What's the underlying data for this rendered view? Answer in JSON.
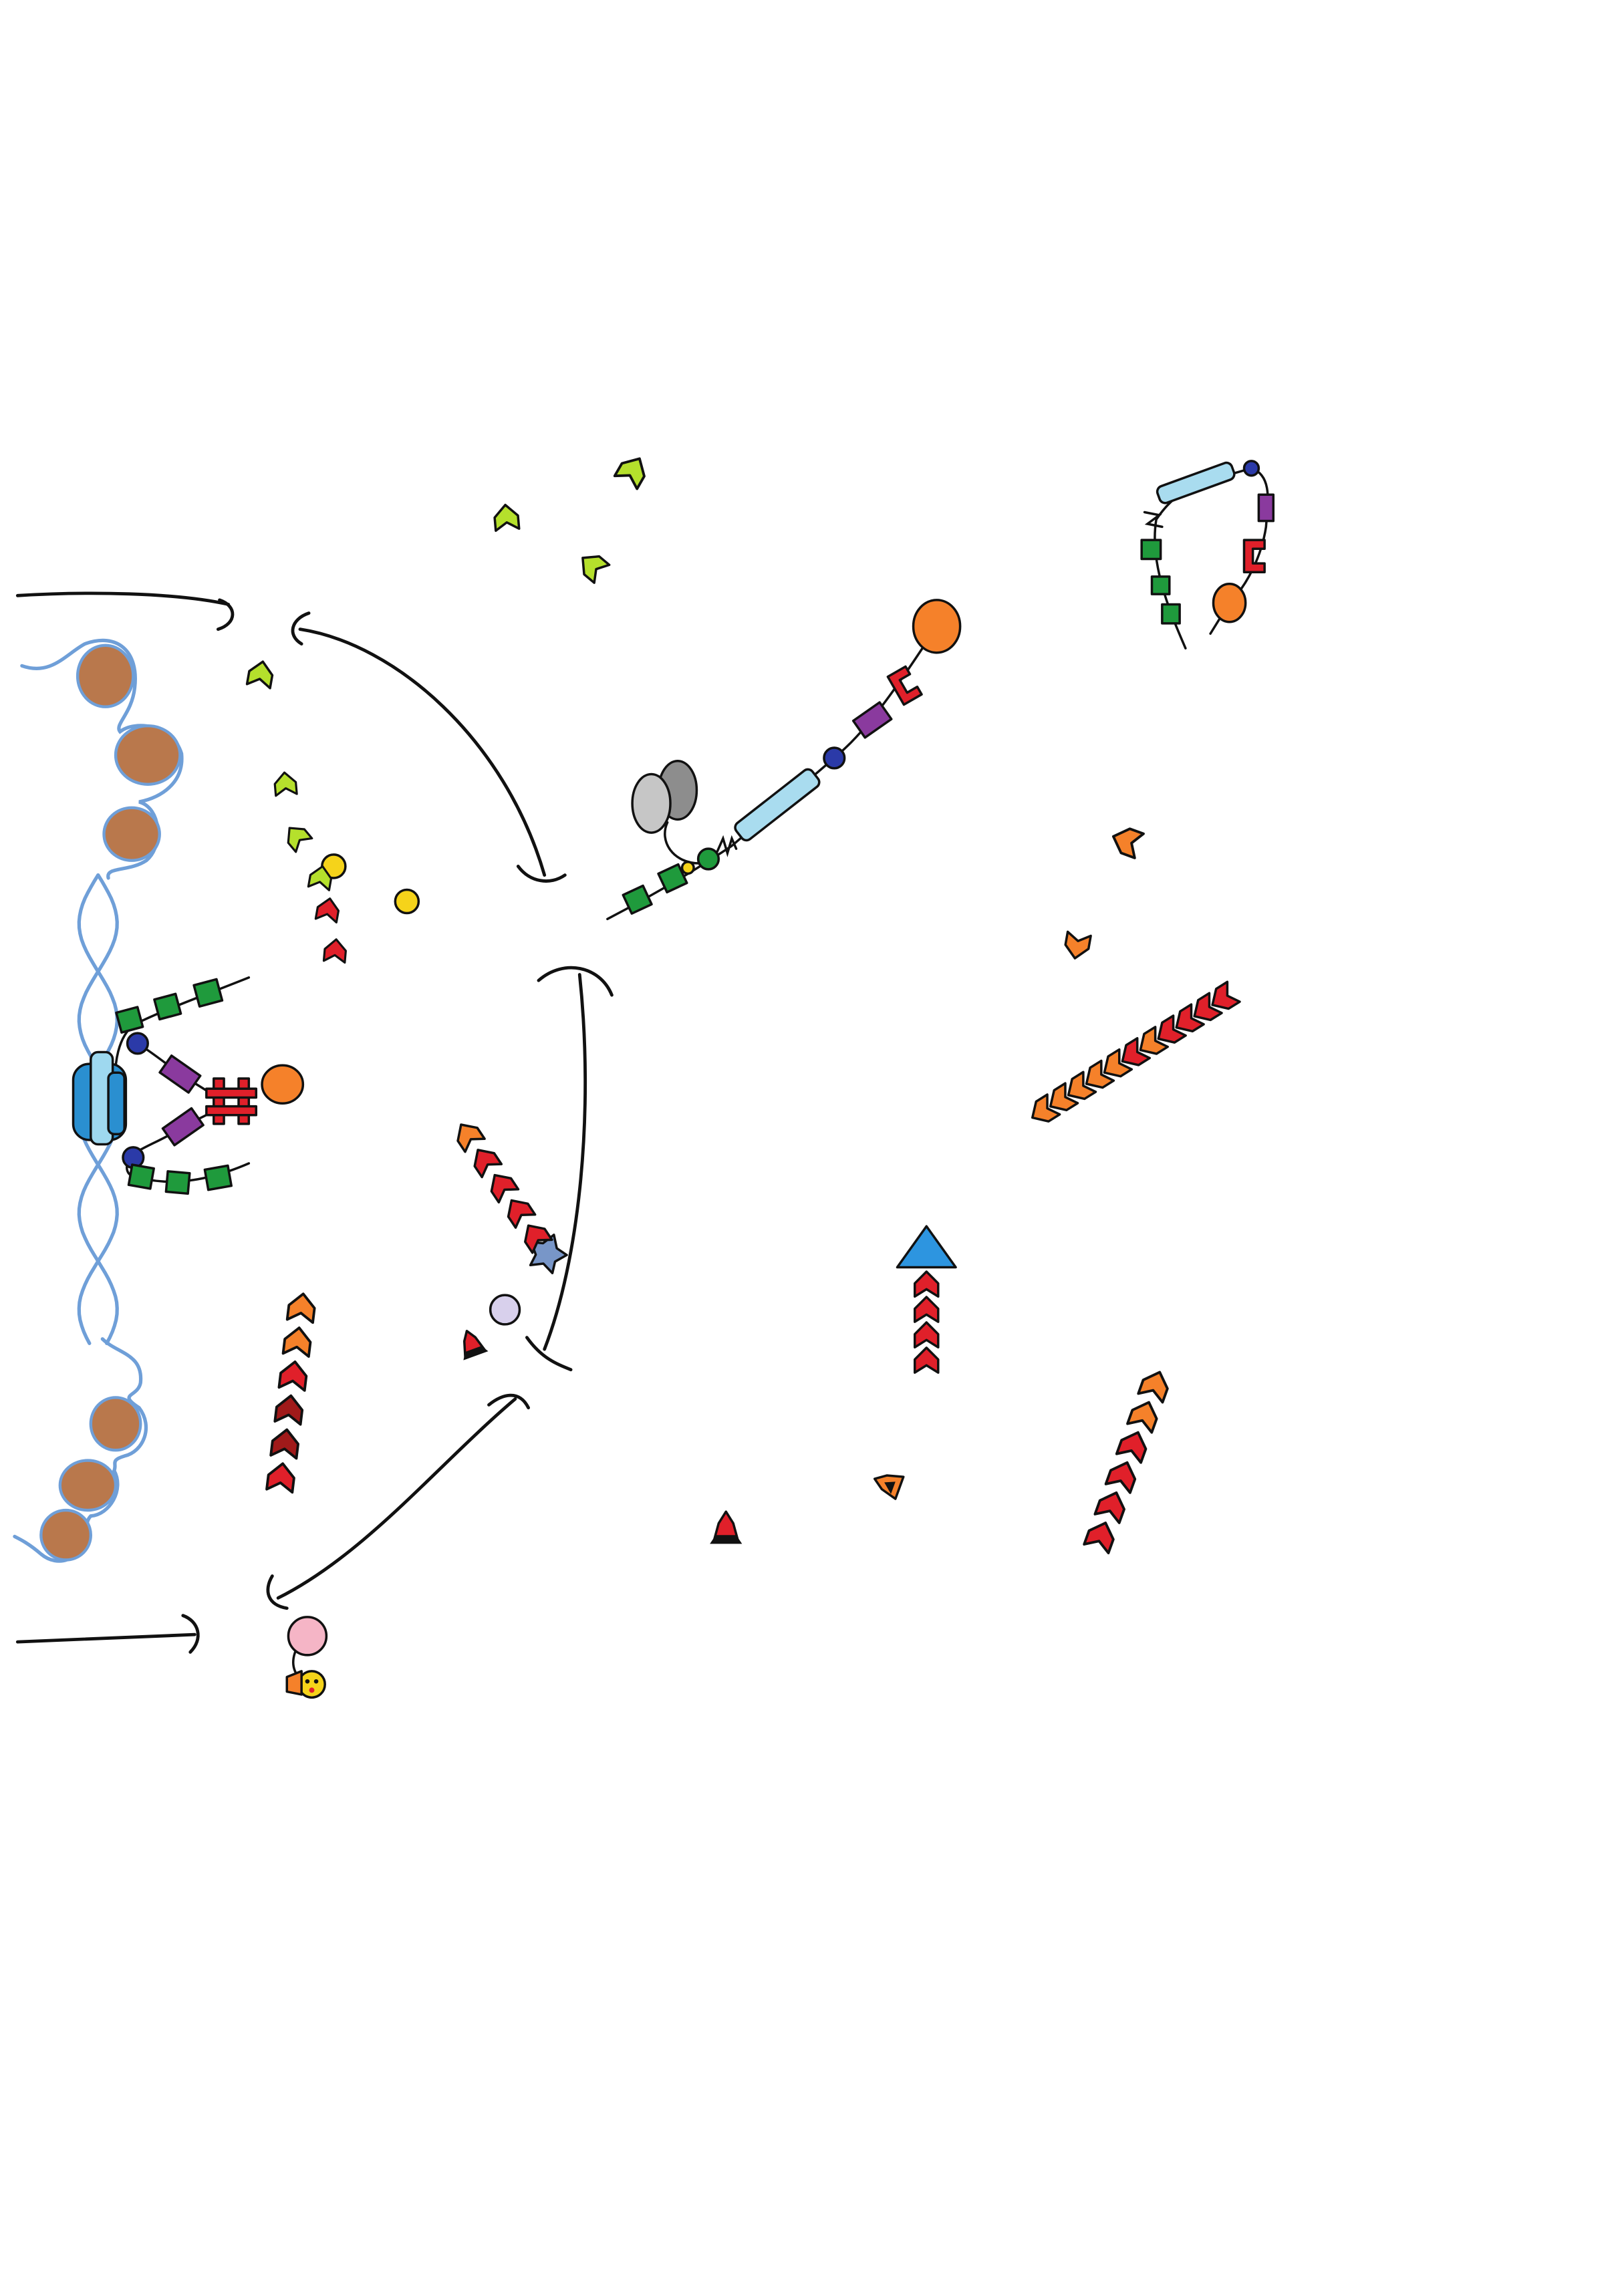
{
  "palette": {
    "nucleosome": "#b9784c",
    "dna": "#6f9fd8",
    "polymerase": "#2a8fd0",
    "polymerase_light": "#9ed8ef",
    "green": "#1f9a3c",
    "purple": "#8a3a9e",
    "dark_blue": "#2b3aa8",
    "red": "#e0202a",
    "dark_red": "#a01a1a",
    "orange": "#f5812a",
    "lime": "#b5e02c",
    "yellow": "#f5d31a",
    "gray_light": "#c6c6c6",
    "gray_dark": "#8d8d8d",
    "light_blue": "#a9dcef",
    "slate": "#7896c8",
    "lavender": "#d8d0ec",
    "pink": "#f5b5c6",
    "blue_arrow": "#2d95e0",
    "ink": "#111111"
  }
}
